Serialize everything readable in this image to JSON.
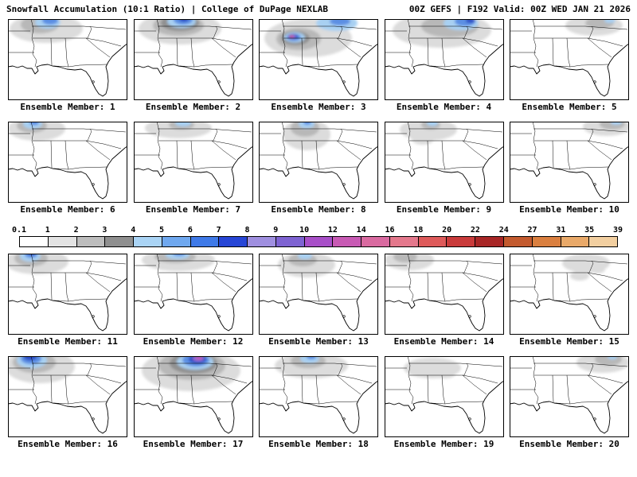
{
  "header": {
    "left": "Snowfall Accumulation (10:1 Ratio) | College of DuPage NEXLAB",
    "right": "00Z GEFS | F192 Valid: 00Z WED JAN 21 2026"
  },
  "colorbar": {
    "labels": [
      "0.1",
      "1",
      "2",
      "3",
      "4",
      "5",
      "6",
      "7",
      "8",
      "9",
      "10",
      "12",
      "14",
      "16",
      "18",
      "20",
      "22",
      "24",
      "27",
      "31",
      "35",
      "39"
    ],
    "colors": [
      "#ffffff",
      "#e3e3e3",
      "#bdbdbd",
      "#8f8f8f",
      "#aad4f5",
      "#6fa8ef",
      "#3f7ae8",
      "#2746d6",
      "#9f8fe0",
      "#7e63d2",
      "#a84fc8",
      "#c85ab4",
      "#d96aa0",
      "#e4788c",
      "#de5a5a",
      "#c93b3b",
      "#a82626",
      "#c35a2e",
      "#da7f3f",
      "#e9a969",
      "#f2cfa0"
    ]
  },
  "palette": {
    "g1": "#dcdcdc",
    "g2": "#b8b8b8",
    "g3": "#909090",
    "b1": "#a8d0f2",
    "b2": "#5b8fe3",
    "b3": "#2e4fc6",
    "p1": "#9a6fd0",
    "m1": "#c558b4",
    "r1": "#d64545"
  },
  "panels": [
    {
      "label": "Ensemble Member: 1",
      "blobs": [
        [
          48,
          12,
          46,
          18,
          "g1"
        ],
        [
          40,
          7,
          24,
          11,
          "g2"
        ],
        [
          50,
          4,
          16,
          8,
          "b1"
        ],
        [
          53,
          2,
          10,
          5,
          "b2"
        ]
      ]
    },
    {
      "label": "Ensemble Member: 2",
      "blobs": [
        [
          58,
          12,
          52,
          20,
          "g1"
        ],
        [
          56,
          8,
          32,
          13,
          "g2"
        ],
        [
          58,
          5,
          24,
          10,
          "g3"
        ],
        [
          60,
          3,
          18,
          8,
          "b1"
        ],
        [
          62,
          1,
          12,
          6,
          "b2"
        ],
        [
          63,
          0,
          6,
          3.5,
          "b3"
        ]
      ]
    },
    {
      "label": "Ensemble Member: 3",
      "blobs": [
        [
          62,
          24,
          55,
          24,
          "g1"
        ],
        [
          50,
          25,
          28,
          14,
          "g2"
        ],
        [
          46,
          24,
          18,
          9,
          "g3"
        ],
        [
          45,
          23,
          13,
          6.5,
          "b1"
        ],
        [
          44,
          23,
          9,
          4.5,
          "b2"
        ],
        [
          43,
          22,
          6.5,
          3.2,
          "b3"
        ],
        [
          42,
          22,
          4.5,
          2.2,
          "p1"
        ],
        [
          41,
          22,
          3,
          1.5,
          "m1"
        ],
        [
          41,
          22,
          1.8,
          0.9,
          "r1"
        ],
        [
          98,
          5,
          26,
          10,
          "b1"
        ],
        [
          102,
          3,
          13,
          5,
          "b2"
        ]
      ]
    },
    {
      "label": "Ensemble Member: 4",
      "blobs": [
        [
          72,
          14,
          62,
          22,
          "g1"
        ],
        [
          82,
          9,
          36,
          14,
          "g2"
        ],
        [
          96,
          5,
          22,
          9,
          "b1"
        ],
        [
          101,
          3,
          13,
          6,
          "b2"
        ],
        [
          108,
          2,
          6,
          3,
          "b3"
        ]
      ]
    },
    {
      "label": "Ensemble Member: 5",
      "blobs": [
        [
          106,
          8,
          36,
          13,
          "g1"
        ],
        [
          113,
          5,
          18,
          7,
          "g2"
        ],
        [
          126,
          2,
          7,
          3,
          "b1"
        ]
      ]
    },
    {
      "label": "Ensemble Member: 6",
      "blobs": [
        [
          36,
          9,
          36,
          15,
          "g1"
        ],
        [
          30,
          5,
          19,
          9,
          "g2"
        ],
        [
          31,
          3,
          12,
          6,
          "b1"
        ],
        [
          33,
          1,
          6,
          3.5,
          "b2"
        ]
      ]
    },
    {
      "label": "Ensemble Member: 7",
      "blobs": [
        [
          56,
          8,
          42,
          13,
          "g1"
        ],
        [
          60,
          4,
          16,
          6,
          "g2"
        ],
        [
          62,
          2,
          10,
          4,
          "b1"
        ]
      ]
    },
    {
      "label": "Ensemble Member: 8",
      "blobs": [
        [
          60,
          16,
          30,
          20,
          "g1"
        ],
        [
          58,
          8,
          18,
          11,
          "g2"
        ],
        [
          60,
          3,
          10,
          5.5,
          "b1"
        ],
        [
          61,
          1,
          5,
          3,
          "b2"
        ]
      ]
    },
    {
      "label": "Ensemble Member: 9",
      "blobs": [
        [
          55,
          10,
          36,
          14,
          "g1"
        ],
        [
          48,
          22,
          14,
          7,
          "g1"
        ],
        [
          58,
          4,
          12,
          6,
          "g2"
        ],
        [
          60,
          2,
          7,
          3.5,
          "b1"
        ]
      ]
    },
    {
      "label": "Ensemble Member: 10",
      "blobs": [
        [
          122,
          6,
          30,
          12,
          "g1"
        ],
        [
          129,
          3,
          16,
          7,
          "g2"
        ],
        [
          134,
          1,
          7,
          3,
          "b1"
        ]
      ]
    },
    {
      "label": "Ensemble Member: 11",
      "blobs": [
        [
          36,
          10,
          40,
          16,
          "g1"
        ],
        [
          29,
          6,
          21,
          10,
          "g2"
        ],
        [
          28,
          3,
          13,
          7,
          "b1"
        ],
        [
          29,
          1,
          8,
          4.5,
          "b2"
        ],
        [
          30,
          0,
          4,
          2.2,
          "b3"
        ]
      ]
    },
    {
      "label": "Ensemble Member: 12",
      "blobs": [
        [
          56,
          8,
          46,
          14,
          "g1"
        ],
        [
          52,
          4,
          26,
          8,
          "g2"
        ],
        [
          55,
          2,
          15,
          5,
          "b1"
        ],
        [
          57,
          0,
          8,
          3,
          "b2"
        ]
      ]
    },
    {
      "label": "Ensemble Member: 13",
      "blobs": [
        [
          60,
          14,
          36,
          16,
          "g1"
        ],
        [
          55,
          8,
          18,
          8,
          "g2"
        ],
        [
          58,
          3,
          9,
          4,
          "b1"
        ]
      ]
    },
    {
      "label": "Ensemble Member: 14",
      "blobs": [
        [
          31,
          8,
          31,
          13,
          "g1"
        ],
        [
          26,
          4,
          15,
          7,
          "g2"
        ]
      ]
    },
    {
      "label": "Ensemble Member: 15",
      "blobs": [
        [
          96,
          12,
          30,
          12,
          "g1"
        ],
        [
          88,
          28,
          12,
          6,
          "g1"
        ],
        [
          110,
          20,
          10,
          5,
          "g1"
        ]
      ]
    },
    {
      "label": "Ensemble Member: 16",
      "blobs": [
        [
          40,
          13,
          44,
          21,
          "g1"
        ],
        [
          33,
          8,
          27,
          13,
          "g2"
        ],
        [
          30,
          5,
          19,
          10,
          "b1"
        ],
        [
          29,
          3,
          13,
          7,
          "b2"
        ],
        [
          28,
          1,
          8,
          4.5,
          "b3"
        ]
      ]
    },
    {
      "label": "Ensemble Member: 17",
      "blobs": [
        [
          72,
          18,
          62,
          26,
          "g1"
        ],
        [
          73,
          12,
          42,
          18,
          "g2"
        ],
        [
          75,
          9,
          30,
          13,
          "g3"
        ],
        [
          77,
          7,
          23,
          10,
          "b1"
        ],
        [
          78,
          5,
          17,
          8,
          "b2"
        ],
        [
          80,
          4,
          11,
          5.5,
          "b3"
        ],
        [
          81,
          3,
          7,
          3.5,
          "p1"
        ],
        [
          82,
          2,
          4,
          2,
          "m1"
        ]
      ]
    },
    {
      "label": "Ensemble Member: 18",
      "blobs": [
        [
          66,
          12,
          46,
          16,
          "g1"
        ],
        [
          62,
          6,
          22,
          9,
          "g2"
        ],
        [
          64,
          3,
          12,
          6,
          "b1"
        ],
        [
          66,
          1,
          6,
          3,
          "b2"
        ]
      ]
    },
    {
      "label": "Ensemble Member: 19",
      "blobs": [
        [
          60,
          15,
          36,
          13,
          "g1"
        ],
        [
          50,
          10,
          15,
          7,
          "g1"
        ],
        [
          76,
          22,
          13,
          6,
          "g1"
        ]
      ]
    },
    {
      "label": "Ensemble Member: 20",
      "blobs": [
        [
          117,
          8,
          33,
          13,
          "g1"
        ],
        [
          124,
          4,
          17,
          8,
          "g2"
        ],
        [
          129,
          1,
          6,
          3,
          "b1"
        ]
      ]
    }
  ]
}
